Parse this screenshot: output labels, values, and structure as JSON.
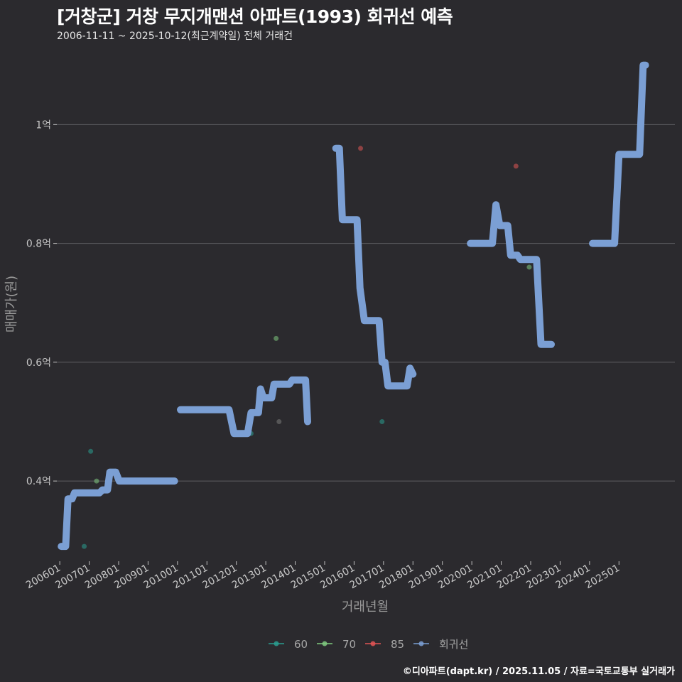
{
  "title": "[거창군] 거창 무지개맨션 아파트(1993) 회귀선 예측",
  "subtitle": "2006-11-11 ~ 2025-10-12(최근계약일) 전체 거래건",
  "credit": "©디아파트(dapt.kr) / 2025.11.05 / 자료=국토교통부 실거래가",
  "colors": {
    "background": "#2b2a2e",
    "grid": "#5e5e62",
    "s60": "#2a9d8f",
    "s70": "#7fc97f",
    "s85": "#e05555",
    "regression": "#7b9fd4"
  },
  "chart_data": {
    "type": "scatter",
    "xlabel": "거래년월",
    "ylabel": "매매가(원)",
    "x_range": [
      2005.9,
      2026.9
    ],
    "ylim": [
      0.265,
      1.12
    ],
    "y_ticks": [
      {
        "value": 0.4,
        "label": "0.4억"
      },
      {
        "value": 0.6,
        "label": "0.6억"
      },
      {
        "value": 0.8,
        "label": "0.8억"
      },
      {
        "value": 1.0,
        "label": "1억"
      }
    ],
    "x_ticks": [
      {
        "value": 2006.0,
        "label": "200601"
      },
      {
        "value": 2007.0,
        "label": "200701"
      },
      {
        "value": 2008.0,
        "label": "200801"
      },
      {
        "value": 2009.0,
        "label": "200901"
      },
      {
        "value": 2010.0,
        "label": "201001"
      },
      {
        "value": 2011.0,
        "label": "201101"
      },
      {
        "value": 2012.0,
        "label": "201201"
      },
      {
        "value": 2013.0,
        "label": "201301"
      },
      {
        "value": 2014.0,
        "label": "201401"
      },
      {
        "value": 2015.0,
        "label": "201501"
      },
      {
        "value": 2016.0,
        "label": "201601"
      },
      {
        "value": 2017.0,
        "label": "201701"
      },
      {
        "value": 2018.0,
        "label": "201801"
      },
      {
        "value": 2019.0,
        "label": "201901"
      },
      {
        "value": 2020.0,
        "label": "202001"
      },
      {
        "value": 2021.0,
        "label": "202101"
      },
      {
        "value": 2022.0,
        "label": "202201"
      },
      {
        "value": 2023.0,
        "label": "202301"
      },
      {
        "value": 2024.0,
        "label": "202401"
      },
      {
        "value": 2025.0,
        "label": "202501"
      }
    ],
    "series": [
      {
        "name": "60",
        "kind": "points",
        "color": "#2a9d8f",
        "points": [
          [
            2006.83,
            0.29
          ],
          [
            2007.05,
            0.45
          ],
          [
            2012.5,
            0.48
          ],
          [
            2016.95,
            0.5
          ]
        ]
      },
      {
        "name": "70",
        "kind": "points",
        "color": "#7fc97f",
        "points": [
          [
            2007.25,
            0.4
          ],
          [
            2013.35,
            0.64
          ],
          [
            2021.95,
            0.76
          ],
          [
            2022.35,
            0.63
          ]
        ]
      },
      {
        "name": "85",
        "kind": "points",
        "color": "#e05555",
        "points": [
          [
            2016.22,
            0.96
          ],
          [
            2021.5,
            0.93
          ]
        ]
      },
      {
        "name": "60-gray",
        "kind": "points",
        "color": "#7a7a7a",
        "legend": false,
        "points": [
          [
            2013.45,
            0.5
          ]
        ]
      },
      {
        "name": "회귀선",
        "kind": "line",
        "color": "#7b9fd4",
        "segments": [
          [
            [
              2006.05,
              0.29
            ],
            [
              2006.2,
              0.29
            ],
            [
              2006.28,
              0.37
            ],
            [
              2006.42,
              0.37
            ],
            [
              2006.5,
              0.38
            ],
            [
              2007.35,
              0.38
            ],
            [
              2007.45,
              0.385
            ],
            [
              2007.62,
              0.385
            ],
            [
              2007.7,
              0.415
            ],
            [
              2007.9,
              0.415
            ],
            [
              2008.02,
              0.4
            ],
            [
              2009.9,
              0.4
            ]
          ],
          [
            [
              2010.1,
              0.52
            ],
            [
              2011.75,
              0.52
            ],
            [
              2011.92,
              0.48
            ],
            [
              2012.38,
              0.48
            ],
            [
              2012.5,
              0.515
            ],
            [
              2012.75,
              0.515
            ],
            [
              2012.82,
              0.555
            ],
            [
              2012.92,
              0.54
            ],
            [
              2013.2,
              0.54
            ],
            [
              2013.28,
              0.563
            ],
            [
              2013.8,
              0.563
            ],
            [
              2013.9,
              0.57
            ],
            [
              2014.35,
              0.57
            ],
            [
              2014.42,
              0.5
            ]
          ],
          [
            [
              2015.38,
              0.96
            ],
            [
              2015.5,
              0.96
            ],
            [
              2015.6,
              0.84
            ],
            [
              2016.1,
              0.84
            ],
            [
              2016.2,
              0.725
            ],
            [
              2016.35,
              0.67
            ],
            [
              2016.85,
              0.67
            ],
            [
              2016.95,
              0.6
            ],
            [
              2017.05,
              0.6
            ],
            [
              2017.15,
              0.56
            ],
            [
              2017.8,
              0.56
            ],
            [
              2017.9,
              0.59
            ],
            [
              2018.0,
              0.58
            ]
          ],
          [
            [
              2019.95,
              0.8
            ],
            [
              2020.7,
              0.8
            ],
            [
              2020.82,
              0.865
            ],
            [
              2020.95,
              0.83
            ],
            [
              2021.22,
              0.83
            ],
            [
              2021.32,
              0.78
            ],
            [
              2021.55,
              0.78
            ],
            [
              2021.65,
              0.773
            ],
            [
              2022.2,
              0.773
            ],
            [
              2022.35,
              0.63
            ],
            [
              2022.7,
              0.63
            ]
          ],
          [
            [
              2024.1,
              0.8
            ],
            [
              2024.85,
              0.8
            ],
            [
              2025.0,
              0.95
            ],
            [
              2025.7,
              0.95
            ],
            [
              2025.82,
              1.1
            ],
            [
              2025.9,
              1.1
            ]
          ]
        ]
      }
    ],
    "legend": [
      {
        "label": "60",
        "color": "#2a9d8f"
      },
      {
        "label": "70",
        "color": "#7fc97f"
      },
      {
        "label": "85",
        "color": "#e05555"
      },
      {
        "label": "회귀선",
        "color": "#7b9fd4"
      }
    ],
    "legend_position": "bottom"
  }
}
